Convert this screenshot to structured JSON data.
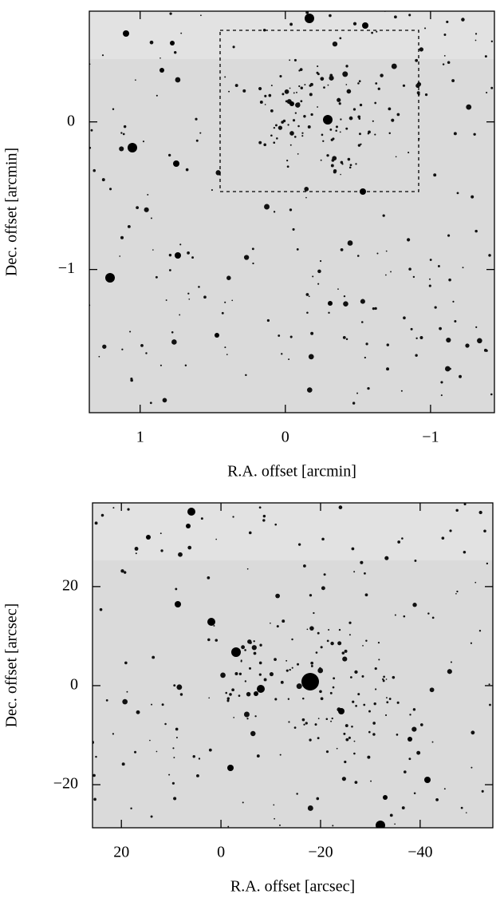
{
  "chart_data": [
    {
      "type": "image",
      "xlabel": "R.A. offset [arcmin]",
      "ylabel": "Dec. offset [arcmin]",
      "xlim": [
        1.35,
        -1.44
      ],
      "ylim": [
        -1.97,
        0.75
      ],
      "xticks": [
        1,
        0,
        {
          "value": -1,
          "label": "−1"
        }
      ],
      "yticks": [
        {
          "value": -1,
          "label": "−1"
        },
        0
      ]
    },
    {
      "type": "image",
      "xlabel": "R.A. offset [arcsec]",
      "ylabel": "Dec. offset [arcsec]",
      "xlim": [
        25.8,
        -54.6
      ],
      "ylim": [
        -28.7,
        36.9
      ],
      "xticks": [
        20,
        0,
        {
          "value": -20,
          "label": "−20"
        },
        {
          "value": -40,
          "label": "−40"
        }
      ],
      "yticks": [
        {
          "value": -20,
          "label": "−20"
        },
        0,
        20
      ]
    }
  ]
}
